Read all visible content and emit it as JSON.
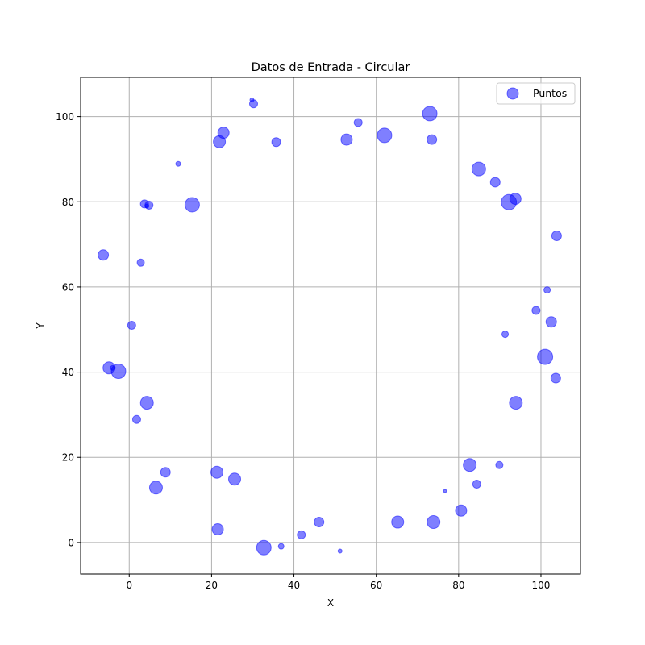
{
  "chart_data": {
    "type": "scatter",
    "title": "Datos de Entrada - Circular",
    "xlabel": "X",
    "ylabel": "Y",
    "xlim": [
      -11.8,
      109.6
    ],
    "ylim": [
      -7.4,
      109.2
    ],
    "xticks": [
      0,
      20,
      40,
      60,
      80,
      100
    ],
    "yticks": [
      0,
      20,
      40,
      60,
      80,
      100
    ],
    "grid": true,
    "legend": {
      "placement": "top-right",
      "entries": [
        "Puntos"
      ]
    },
    "series": [
      {
        "name": "Puntos",
        "color": "#0000ff",
        "alpha": 0.5,
        "points": [
          {
            "x": 73.0,
            "y": 100.7,
            "size": 18
          },
          {
            "x": 62.0,
            "y": 95.6,
            "size": 18
          },
          {
            "x": 55.6,
            "y": 98.6,
            "size": 10
          },
          {
            "x": 73.5,
            "y": 94.6,
            "size": 12
          },
          {
            "x": 52.8,
            "y": 94.6,
            "size": 14
          },
          {
            "x": 30.2,
            "y": 103.0,
            "size": 10
          },
          {
            "x": 29.8,
            "y": 103.9,
            "size": 5
          },
          {
            "x": 22.9,
            "y": 96.2,
            "size": 14
          },
          {
            "x": 21.9,
            "y": 94.1,
            "size": 15
          },
          {
            "x": 35.7,
            "y": 94.0,
            "size": 11
          },
          {
            "x": 11.9,
            "y": 88.9,
            "size": 6
          },
          {
            "x": 15.3,
            "y": 79.3,
            "size": 18
          },
          {
            "x": 3.7,
            "y": 79.5,
            "size": 10
          },
          {
            "x": 4.8,
            "y": 79.2,
            "size": 10
          },
          {
            "x": 4.3,
            "y": 79.0,
            "size": 5
          },
          {
            "x": -6.3,
            "y": 67.5,
            "size": 13
          },
          {
            "x": 2.8,
            "y": 65.7,
            "size": 9
          },
          {
            "x": 0.6,
            "y": 51.0,
            "size": 10
          },
          {
            "x": -4.9,
            "y": 41.0,
            "size": 15
          },
          {
            "x": -2.6,
            "y": 40.2,
            "size": 18
          },
          {
            "x": -4.0,
            "y": 41.0,
            "size": 6
          },
          {
            "x": 4.3,
            "y": 32.8,
            "size": 16
          },
          {
            "x": 1.8,
            "y": 28.9,
            "size": 10
          },
          {
            "x": 8.8,
            "y": 16.5,
            "size": 12
          },
          {
            "x": 6.5,
            "y": 12.9,
            "size": 16
          },
          {
            "x": 21.3,
            "y": 16.5,
            "size": 15
          },
          {
            "x": 25.6,
            "y": 14.9,
            "size": 15
          },
          {
            "x": 21.5,
            "y": 3.1,
            "size": 14
          },
          {
            "x": 32.7,
            "y": -1.2,
            "size": 18
          },
          {
            "x": 36.9,
            "y": -0.9,
            "size": 7
          },
          {
            "x": 41.8,
            "y": 1.8,
            "size": 10
          },
          {
            "x": 46.1,
            "y": 4.8,
            "size": 12
          },
          {
            "x": 51.2,
            "y": -2.0,
            "size": 5
          },
          {
            "x": 65.2,
            "y": 4.8,
            "size": 15
          },
          {
            "x": 73.9,
            "y": 4.8,
            "size": 16
          },
          {
            "x": 80.6,
            "y": 7.5,
            "size": 14
          },
          {
            "x": 76.7,
            "y": 12.1,
            "size": 4
          },
          {
            "x": 82.7,
            "y": 18.2,
            "size": 16
          },
          {
            "x": 84.4,
            "y": 13.7,
            "size": 10
          },
          {
            "x": 89.9,
            "y": 18.2,
            "size": 9
          },
          {
            "x": 93.9,
            "y": 32.8,
            "size": 16
          },
          {
            "x": 103.6,
            "y": 38.6,
            "size": 12
          },
          {
            "x": 101.0,
            "y": 43.6,
            "size": 19
          },
          {
            "x": 91.3,
            "y": 48.9,
            "size": 8
          },
          {
            "x": 102.5,
            "y": 51.8,
            "size": 13
          },
          {
            "x": 98.8,
            "y": 54.5,
            "size": 10
          },
          {
            "x": 101.5,
            "y": 59.3,
            "size": 8
          },
          {
            "x": 103.8,
            "y": 72.0,
            "size": 12
          },
          {
            "x": 92.2,
            "y": 79.9,
            "size": 19
          },
          {
            "x": 93.8,
            "y": 80.7,
            "size": 14
          },
          {
            "x": 88.9,
            "y": 84.6,
            "size": 12
          },
          {
            "x": 84.9,
            "y": 87.7,
            "size": 17
          }
        ]
      }
    ]
  }
}
